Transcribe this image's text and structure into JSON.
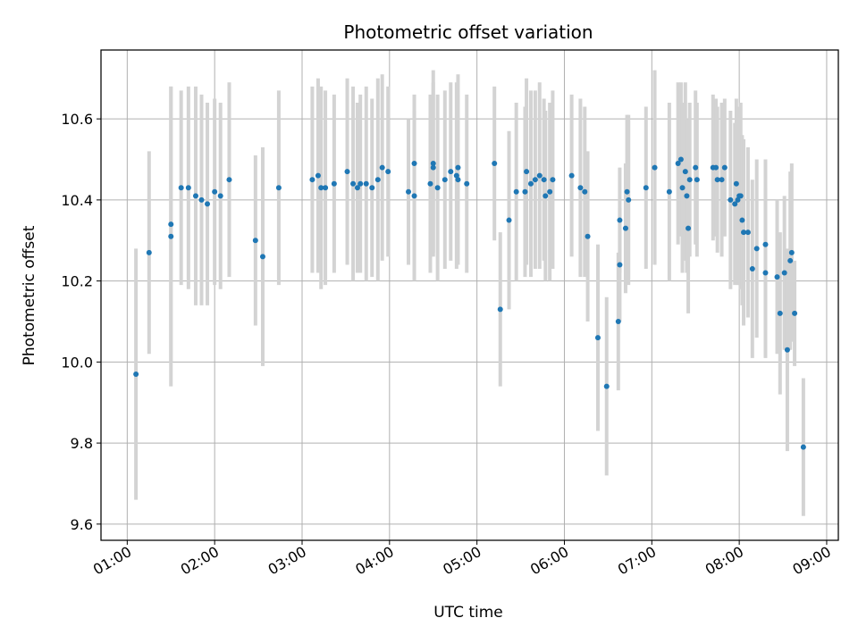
{
  "chart_data": {
    "type": "scatter",
    "title": "Photometric offset variation",
    "xlabel": "UTC time",
    "ylabel": "Photometric offset",
    "grid": true,
    "x_ticks": [
      "01:00",
      "02:00",
      "03:00",
      "04:00",
      "05:00",
      "06:00",
      "07:00",
      "08:00",
      "09:00"
    ],
    "y_ticks": [
      "9.6",
      "9.8",
      "10.0",
      "10.2",
      "10.4",
      "10.6"
    ],
    "xlim": [
      "00:42",
      "09:08"
    ],
    "ylim": [
      9.56,
      10.77
    ],
    "colors": {
      "point": "#1f77b4",
      "errorbar": "#d3d3d3",
      "grid": "#b0b0b0"
    },
    "series": [
      {
        "x": [
          "01:06",
          "01:15",
          "01:30",
          "01:30",
          "01:37",
          "01:42",
          "01:47",
          "01:51",
          "01:55",
          "02:00",
          "02:04",
          "02:10",
          "02:28",
          "02:33",
          "02:44",
          "03:07",
          "03:11",
          "03:13",
          "03:16",
          "03:22",
          "03:31",
          "03:35",
          "03:38",
          "03:40",
          "03:44",
          "03:48",
          "03:52",
          "03:55",
          "03:59",
          "04:13",
          "04:17",
          "04:17",
          "04:28",
          "04:30",
          "04:30",
          "04:33",
          "04:38",
          "04:42",
          "04:46",
          "04:47",
          "04:47",
          "04:53",
          "05:12",
          "05:16",
          "05:22",
          "05:27",
          "05:33",
          "05:34",
          "05:37",
          "05:40",
          "05:43",
          "05:46",
          "05:47",
          "05:50",
          "05:52",
          "06:05",
          "06:11",
          "06:14",
          "06:16",
          "06:23",
          "06:29",
          "06:37",
          "06:38",
          "06:38",
          "06:42",
          "06:43",
          "06:44",
          "06:56",
          "07:02",
          "07:12",
          "07:18",
          "07:20",
          "07:21",
          "07:23",
          "07:24",
          "07:25",
          "07:26",
          "07:30",
          "07:31",
          "07:42",
          "07:44",
          "07:45",
          "07:48",
          "07:50",
          "07:54",
          "07:57",
          "07:58",
          "07:59",
          "08:00",
          "08:01",
          "08:02",
          "08:03",
          "08:06",
          "08:09",
          "08:12",
          "08:18",
          "08:18",
          "08:26",
          "08:28",
          "08:31",
          "08:33",
          "08:35",
          "08:36",
          "08:38",
          "08:44"
        ],
        "y": [
          9.97,
          10.27,
          10.31,
          10.34,
          10.43,
          10.43,
          10.41,
          10.4,
          10.39,
          10.42,
          10.41,
          10.45,
          10.3,
          10.26,
          10.43,
          10.45,
          10.46,
          10.43,
          10.43,
          10.44,
          10.47,
          10.44,
          10.43,
          10.44,
          10.44,
          10.43,
          10.45,
          10.48,
          10.47,
          10.42,
          10.49,
          10.41,
          10.44,
          10.49,
          10.48,
          10.43,
          10.45,
          10.47,
          10.46,
          10.48,
          10.45,
          10.44,
          10.49,
          10.13,
          10.35,
          10.42,
          10.42,
          10.47,
          10.44,
          10.45,
          10.46,
          10.45,
          10.41,
          10.42,
          10.45,
          10.46,
          10.43,
          10.42,
          10.31,
          10.06,
          9.94,
          10.1,
          10.35,
          10.24,
          10.33,
          10.42,
          10.4,
          10.43,
          10.48,
          10.42,
          10.49,
          10.5,
          10.43,
          10.47,
          10.41,
          10.33,
          10.45,
          10.48,
          10.45,
          10.48,
          10.48,
          10.45,
          10.45,
          10.48,
          10.4,
          10.39,
          10.44,
          10.4,
          10.41,
          10.41,
          10.35,
          10.32,
          10.32,
          10.23,
          10.28,
          10.29,
          10.22,
          10.21,
          10.12,
          10.22,
          10.03,
          10.25,
          10.27,
          10.12,
          9.79
        ],
        "yerr": [
          0.31,
          0.25,
          0.37,
          0.34,
          0.24,
          0.25,
          0.27,
          0.26,
          0.25,
          0.23,
          0.23,
          0.24,
          0.21,
          0.27,
          0.24,
          0.23,
          0.24,
          0.25,
          0.24,
          0.22,
          0.23,
          0.24,
          0.21,
          0.22,
          0.24,
          0.22,
          0.25,
          0.23,
          0.21,
          0.18,
          0.17,
          0.21,
          0.22,
          0.23,
          0.21,
          0.23,
          0.22,
          0.22,
          0.23,
          0.23,
          0.21,
          0.22,
          0.19,
          0.19,
          0.22,
          0.22,
          0.21,
          0.23,
          0.23,
          0.22,
          0.23,
          0.2,
          0.21,
          0.22,
          0.22,
          0.2,
          0.22,
          0.21,
          0.21,
          0.23,
          0.22,
          0.17,
          0.13,
          0.14,
          0.16,
          0.19,
          0.21,
          0.2,
          0.24,
          0.22,
          0.2,
          0.19,
          0.21,
          0.22,
          0.19,
          0.21,
          0.19,
          0.19,
          0.19,
          0.18,
          0.17,
          0.18,
          0.19,
          0.17,
          0.22,
          0.2,
          0.21,
          0.21,
          0.22,
          0.23,
          0.21,
          0.23,
          0.21,
          0.22,
          0.22,
          0.21,
          0.21,
          0.19,
          0.2,
          0.19,
          0.25,
          0.22,
          0.22,
          0.13,
          0.17
        ]
      }
    ]
  }
}
